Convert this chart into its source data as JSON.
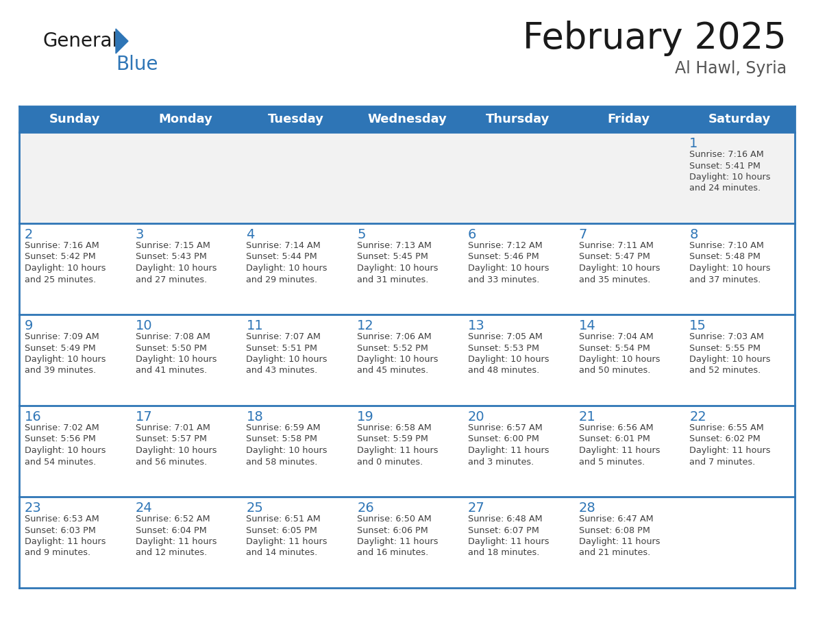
{
  "title": "February 2025",
  "subtitle": "Al Hawl, Syria",
  "days_of_week": [
    "Sunday",
    "Monday",
    "Tuesday",
    "Wednesday",
    "Thursday",
    "Friday",
    "Saturday"
  ],
  "header_bg": "#2E75B6",
  "header_text": "#FFFFFF",
  "cell_bg_gray": "#F2F2F2",
  "cell_bg_white": "#FFFFFF",
  "cell_border_color": "#2E75B6",
  "day_num_color": "#2E75B6",
  "info_color": "#404040",
  "title_color": "#1a1a1a",
  "subtitle_color": "#555555",
  "logo_general_color": "#1a1a1a",
  "logo_blue_color": "#2E75B6",
  "calendar_data": [
    [
      null,
      null,
      null,
      null,
      null,
      null,
      {
        "day": 1,
        "sunrise": "7:16 AM",
        "sunset": "5:41 PM",
        "daylight": "10 hours and 24 minutes."
      }
    ],
    [
      {
        "day": 2,
        "sunrise": "7:16 AM",
        "sunset": "5:42 PM",
        "daylight": "10 hours and 25 minutes."
      },
      {
        "day": 3,
        "sunrise": "7:15 AM",
        "sunset": "5:43 PM",
        "daylight": "10 hours and 27 minutes."
      },
      {
        "day": 4,
        "sunrise": "7:14 AM",
        "sunset": "5:44 PM",
        "daylight": "10 hours and 29 minutes."
      },
      {
        "day": 5,
        "sunrise": "7:13 AM",
        "sunset": "5:45 PM",
        "daylight": "10 hours and 31 minutes."
      },
      {
        "day": 6,
        "sunrise": "7:12 AM",
        "sunset": "5:46 PM",
        "daylight": "10 hours and 33 minutes."
      },
      {
        "day": 7,
        "sunrise": "7:11 AM",
        "sunset": "5:47 PM",
        "daylight": "10 hours and 35 minutes."
      },
      {
        "day": 8,
        "sunrise": "7:10 AM",
        "sunset": "5:48 PM",
        "daylight": "10 hours and 37 minutes."
      }
    ],
    [
      {
        "day": 9,
        "sunrise": "7:09 AM",
        "sunset": "5:49 PM",
        "daylight": "10 hours and 39 minutes."
      },
      {
        "day": 10,
        "sunrise": "7:08 AM",
        "sunset": "5:50 PM",
        "daylight": "10 hours and 41 minutes."
      },
      {
        "day": 11,
        "sunrise": "7:07 AM",
        "sunset": "5:51 PM",
        "daylight": "10 hours and 43 minutes."
      },
      {
        "day": 12,
        "sunrise": "7:06 AM",
        "sunset": "5:52 PM",
        "daylight": "10 hours and 45 minutes."
      },
      {
        "day": 13,
        "sunrise": "7:05 AM",
        "sunset": "5:53 PM",
        "daylight": "10 hours and 48 minutes."
      },
      {
        "day": 14,
        "sunrise": "7:04 AM",
        "sunset": "5:54 PM",
        "daylight": "10 hours and 50 minutes."
      },
      {
        "day": 15,
        "sunrise": "7:03 AM",
        "sunset": "5:55 PM",
        "daylight": "10 hours and 52 minutes."
      }
    ],
    [
      {
        "day": 16,
        "sunrise": "7:02 AM",
        "sunset": "5:56 PM",
        "daylight": "10 hours and 54 minutes."
      },
      {
        "day": 17,
        "sunrise": "7:01 AM",
        "sunset": "5:57 PM",
        "daylight": "10 hours and 56 minutes."
      },
      {
        "day": 18,
        "sunrise": "6:59 AM",
        "sunset": "5:58 PM",
        "daylight": "10 hours and 58 minutes."
      },
      {
        "day": 19,
        "sunrise": "6:58 AM",
        "sunset": "5:59 PM",
        "daylight": "11 hours and 0 minutes."
      },
      {
        "day": 20,
        "sunrise": "6:57 AM",
        "sunset": "6:00 PM",
        "daylight": "11 hours and 3 minutes."
      },
      {
        "day": 21,
        "sunrise": "6:56 AM",
        "sunset": "6:01 PM",
        "daylight": "11 hours and 5 minutes."
      },
      {
        "day": 22,
        "sunrise": "6:55 AM",
        "sunset": "6:02 PM",
        "daylight": "11 hours and 7 minutes."
      }
    ],
    [
      {
        "day": 23,
        "sunrise": "6:53 AM",
        "sunset": "6:03 PM",
        "daylight": "11 hours and 9 minutes."
      },
      {
        "day": 24,
        "sunrise": "6:52 AM",
        "sunset": "6:04 PM",
        "daylight": "11 hours and 12 minutes."
      },
      {
        "day": 25,
        "sunrise": "6:51 AM",
        "sunset": "6:05 PM",
        "daylight": "11 hours and 14 minutes."
      },
      {
        "day": 26,
        "sunrise": "6:50 AM",
        "sunset": "6:06 PM",
        "daylight": "11 hours and 16 minutes."
      },
      {
        "day": 27,
        "sunrise": "6:48 AM",
        "sunset": "6:07 PM",
        "daylight": "11 hours and 18 minutes."
      },
      {
        "day": 28,
        "sunrise": "6:47 AM",
        "sunset": "6:08 PM",
        "daylight": "11 hours and 21 minutes."
      },
      null
    ]
  ]
}
